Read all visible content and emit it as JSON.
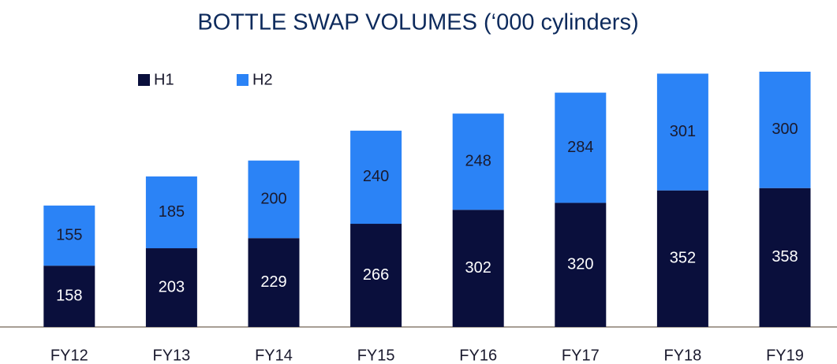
{
  "chart_data": {
    "type": "bar",
    "stacked": true,
    "title": "BOTTLE SWAP VOLUMES (‘000 cylinders)",
    "categories": [
      "FY12",
      "FY13",
      "FY14",
      "FY15",
      "FY16",
      "FY17",
      "FY18",
      "FY19"
    ],
    "series": [
      {
        "name": "H1",
        "color": "#0a0f3c",
        "values": [
          158,
          203,
          229,
          266,
          302,
          320,
          352,
          358
        ]
      },
      {
        "name": "H2",
        "color": "#2b83f6",
        "values": [
          155,
          185,
          200,
          240,
          248,
          284,
          301,
          300
        ]
      }
    ],
    "legend": "top-left"
  }
}
